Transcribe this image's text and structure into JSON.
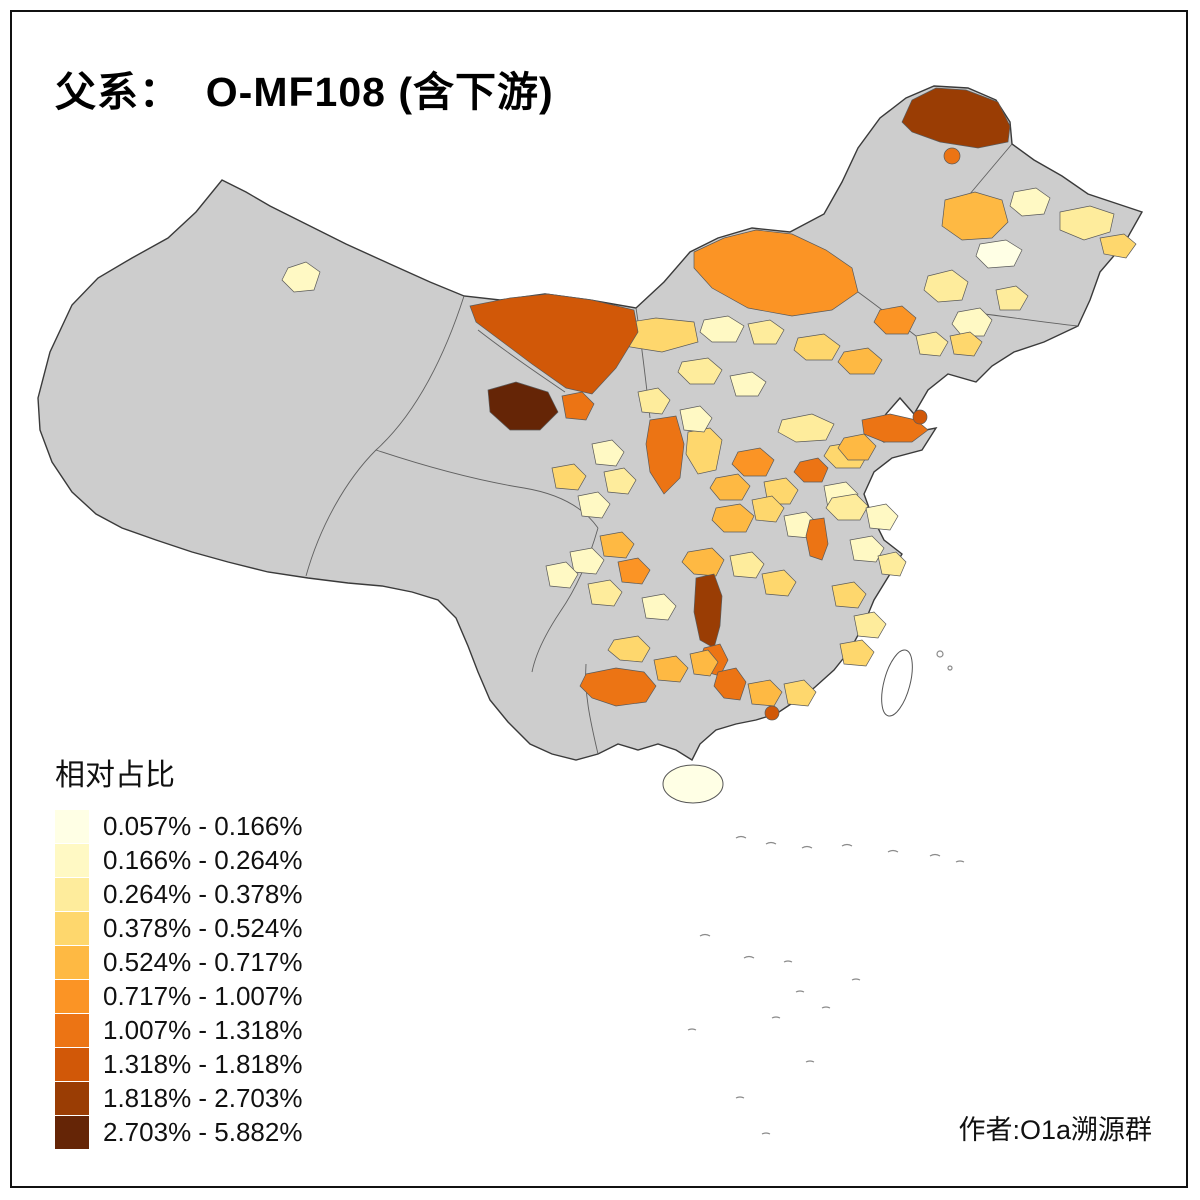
{
  "title": "父系：  O-MF108 (含下游)",
  "legend": {
    "title": "相对占比",
    "items": [
      {
        "range": "0.057% - 0.166%",
        "color": "#FFFFE5"
      },
      {
        "range": "0.166% - 0.264%",
        "color": "#FFF9C4"
      },
      {
        "range": "0.264% - 0.378%",
        "color": "#FEEC9C"
      },
      {
        "range": "0.378% - 0.524%",
        "color": "#FED76D"
      },
      {
        "range": "0.524% - 0.717%",
        "color": "#FEB943"
      },
      {
        "range": "0.717% - 1.007%",
        "color": "#FB9425"
      },
      {
        "range": "1.007% - 1.318%",
        "color": "#EC7414"
      },
      {
        "range": "1.318% - 1.818%",
        "color": "#D15808"
      },
      {
        "range": "1.818% - 2.703%",
        "color": "#9A3D04"
      },
      {
        "range": "2.703% - 5.882%",
        "color": "#652506"
      }
    ]
  },
  "attribution": "作者:O1a溯源群",
  "map": {
    "no_data_color": "#CDCDCD",
    "taiwan_color": "#FFFFFF",
    "background": "#FFFFFF"
  }
}
